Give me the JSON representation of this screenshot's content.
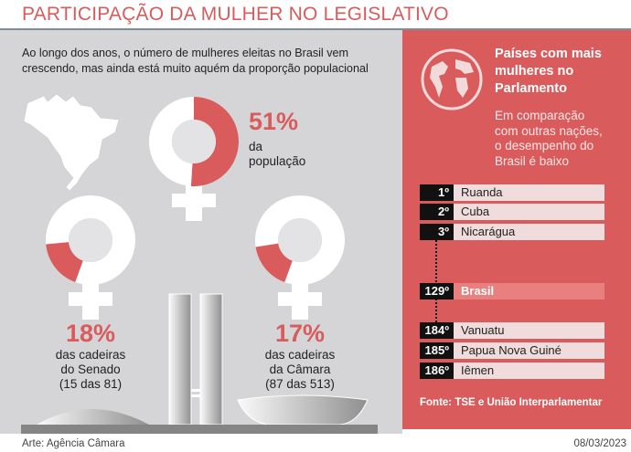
{
  "title": "PARTICIPAÇÃO DA MULHER NO LEGISLATIVO",
  "intro": [
    "Ao longo dos anos, o número de mulheres eleitas no Brasil vem",
    "crescendo, mas ainda está muito aquém da proporção populacional"
  ],
  "colors": {
    "accent": "#d95b5b",
    "panel": "#d5d5d8"
  },
  "population": {
    "value": "51%",
    "percent": 51,
    "lines": [
      "da",
      "população"
    ]
  },
  "senado": {
    "value": "18%",
    "percent": 18,
    "lines": [
      "das cadeiras",
      "do Senado",
      "(15 das 81)"
    ]
  },
  "camara": {
    "value": "17%",
    "percent": 17,
    "lines": [
      "das cadeiras",
      "da Câmara",
      "(87 das 513)"
    ]
  },
  "ranking": {
    "title": [
      "Países com mais",
      "mulheres no",
      "Parlamento"
    ],
    "subtitle": [
      "Em comparação",
      "com outras nações,",
      "o desempenho do",
      "Brasil é baixo"
    ],
    "icon": "globe-icon",
    "rows": [
      {
        "rank": "1º",
        "name": "Ruanda"
      },
      {
        "rank": "2º",
        "name": "Cuba"
      },
      {
        "rank": "3º",
        "name": "Nicarágua"
      },
      {
        "rank": "129º",
        "name": "Brasil"
      },
      {
        "rank": "184º",
        "name": "Vanuatu"
      },
      {
        "rank": "185º",
        "name": "Papua Nova Guiné"
      },
      {
        "rank": "186º",
        "name": "Iêmen"
      }
    ],
    "source": "Fonte: TSE e União Interparlamentar"
  },
  "footer": {
    "credit": "Arte: Agência Câmara",
    "date": "08/03/2023"
  }
}
